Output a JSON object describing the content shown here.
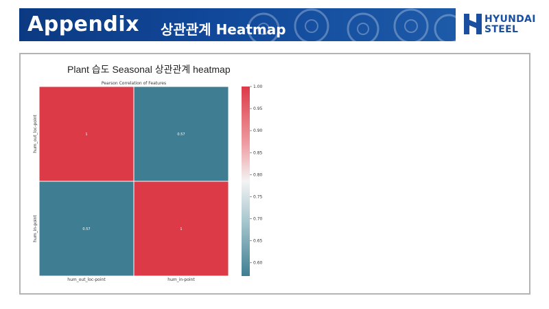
{
  "banner": {
    "title": "Appendix",
    "subtitle": "상관관계 Heatmap"
  },
  "logo": {
    "line1": "HYUNDAI",
    "line2": "STEEL"
  },
  "slide": {
    "chart_heading": "Plant 습도 Seasonal 상관관계 heatmap"
  },
  "colors": {
    "banner_blue": "#11489a",
    "logo_blue": "#1a4fa0",
    "high": "#dc3a47",
    "mid": "#f1f1f1",
    "low": "#3f7e92"
  },
  "chart_data": {
    "type": "heatmap",
    "title": "Pearson Correlation of Features",
    "x_categories": [
      "hum_out_loc-point",
      "hum_in-point"
    ],
    "y_categories": [
      "hum_out_loc-point",
      "hum_in-point"
    ],
    "values": [
      [
        1,
        0.57
      ],
      [
        0.57,
        1
      ]
    ],
    "annotations": [
      [
        "1",
        "0.57"
      ],
      [
        "0.57",
        "1"
      ]
    ],
    "colorbar": {
      "min": 0.57,
      "max": 1.0,
      "ticks": [
        "1.00",
        "0.95",
        "0.90",
        "0.85",
        "0.80",
        "0.75",
        "0.70",
        "0.65",
        "0.60"
      ]
    }
  }
}
